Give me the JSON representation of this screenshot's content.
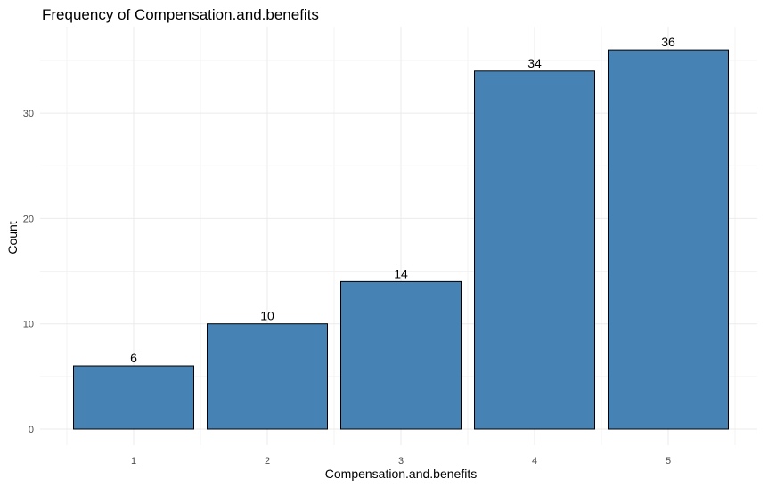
{
  "chart_data": {
    "type": "bar",
    "title": "Frequency of Compensation.and.benefits",
    "xlabel": "Compensation.and.benefits",
    "ylabel": "Count",
    "categories": [
      "1",
      "2",
      "3",
      "4",
      "5"
    ],
    "values": [
      6,
      10,
      14,
      34,
      36
    ],
    "data_labels": [
      "6",
      "10",
      "14",
      "34",
      "36"
    ],
    "y_ticks": [
      0,
      10,
      20,
      30
    ],
    "y_tick_labels": [
      "0",
      "10",
      "20",
      "30"
    ],
    "ylim": [
      0,
      37.8
    ],
    "grid": true,
    "legend": "none",
    "colors": {
      "bar_fill": "#4682b4",
      "bar_stroke": "#000000",
      "grid_major": "#ebebeb",
      "grid_minor": "#f3f3f3",
      "background": "#ffffff"
    }
  }
}
